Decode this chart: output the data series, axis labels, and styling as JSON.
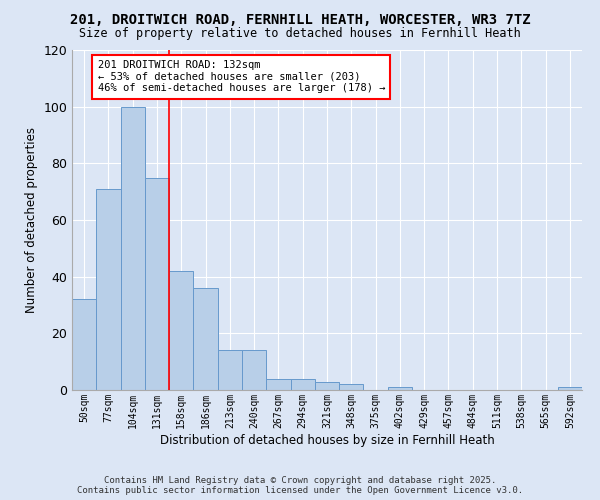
{
  "title": "201, DROITWICH ROAD, FERNHILL HEATH, WORCESTER, WR3 7TZ",
  "subtitle": "Size of property relative to detached houses in Fernhill Heath",
  "xlabel": "Distribution of detached houses by size in Fernhill Heath",
  "ylabel": "Number of detached properties",
  "bar_labels": [
    "50sqm",
    "77sqm",
    "104sqm",
    "131sqm",
    "158sqm",
    "186sqm",
    "213sqm",
    "240sqm",
    "267sqm",
    "294sqm",
    "321sqm",
    "348sqm",
    "375sqm",
    "402sqm",
    "429sqm",
    "457sqm",
    "484sqm",
    "511sqm",
    "538sqm",
    "565sqm",
    "592sqm"
  ],
  "bar_values": [
    32,
    71,
    100,
    75,
    42,
    36,
    14,
    14,
    4,
    4,
    3,
    2,
    0,
    1,
    0,
    0,
    0,
    0,
    0,
    0,
    1
  ],
  "bar_color": "#b8cfe8",
  "bar_edge_color": "#6699cc",
  "fig_bg_color": "#dce6f5",
  "plot_bg_color": "#dce6f5",
  "grid_color": "#ffffff",
  "ylim": [
    0,
    120
  ],
  "yticks": [
    0,
    20,
    40,
    60,
    80,
    100,
    120
  ],
  "redline_x": 3,
  "annotation_title": "201 DROITWICH ROAD: 132sqm",
  "annotation_line1": "← 53% of detached houses are smaller (203)",
  "annotation_line2": "46% of semi-detached houses are larger (178) →",
  "footer1": "Contains HM Land Registry data © Crown copyright and database right 2025.",
  "footer2": "Contains public sector information licensed under the Open Government Licence v3.0."
}
